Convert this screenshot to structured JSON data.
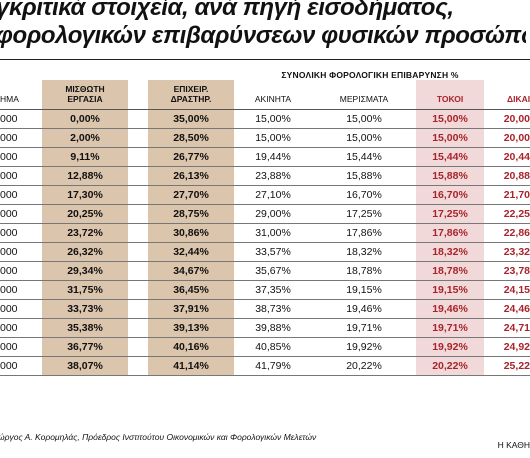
{
  "title": {
    "line1": "γκριτικά στοιχεία, ανά πηγή εισοδήματος,",
    "line2": "φορολογικών επιβαρύνσεων φυσικών προσώπων"
  },
  "table": {
    "group_header": "ΣΥΝΟΛΙΚΗ ΦΟΡΟΛΟΓΙΚΗ ΕΠΙΒΑΡΥΝΣΗ %",
    "columns": {
      "income": "ΗΜΑ",
      "salary_1": "ΜΙΣΘΩΤΗ",
      "salary_2": "ΕΡΓΑΣΙΑ",
      "business_1": "ΕΠΙΧΕΙΡ.",
      "business_2": "ΔΡΑΣΤΗΡ.",
      "property": "ΑΚΙΝΗΤΑ",
      "dividends": "ΜΕΡΙΣΜΑΤΑ",
      "interest": "ΤΟΚΟΙ",
      "royalties": "ΔΙΚΑΙΩΜ"
    },
    "rows": [
      [
        "000",
        "0,00%",
        "35,00%",
        "15,00%",
        "15,00%",
        "15,00%",
        "20,00"
      ],
      [
        "000",
        "2,00%",
        "28,50%",
        "15,00%",
        "15,00%",
        "15,00%",
        "20,00"
      ],
      [
        "000",
        "9,11%",
        "26,77%",
        "19,44%",
        "15,44%",
        "15,44%",
        "20,44"
      ],
      [
        "000",
        "12,88%",
        "26,13%",
        "23,88%",
        "15,88%",
        "15,88%",
        "20,88"
      ],
      [
        "000",
        "17,30%",
        "27,70%",
        "27,10%",
        "16,70%",
        "16,70%",
        "21,70"
      ],
      [
        "000",
        "20,25%",
        "28,75%",
        "29,00%",
        "17,25%",
        "17,25%",
        "22,25"
      ],
      [
        "000",
        "23,72%",
        "30,86%",
        "31,00%",
        "17,86%",
        "17,86%",
        "22,86"
      ],
      [
        "000",
        "26,32%",
        "32,44%",
        "33,57%",
        "18,32%",
        "18,32%",
        "23,32"
      ],
      [
        "000",
        "29,34%",
        "34,67%",
        "35,67%",
        "18,78%",
        "18,78%",
        "23,78"
      ],
      [
        "000",
        "31,75%",
        "36,45%",
        "37,35%",
        "19,15%",
        "19,15%",
        "24,15"
      ],
      [
        "000",
        "33,73%",
        "37,91%",
        "38,73%",
        "19,46%",
        "19,46%",
        "24,46"
      ],
      [
        "000",
        "35,38%",
        "39,13%",
        "39,88%",
        "19,71%",
        "19,71%",
        "24,71"
      ],
      [
        "000",
        "36,77%",
        "40,16%",
        "40,85%",
        "19,92%",
        "19,92%",
        "24,92"
      ],
      [
        "000",
        "38,07%",
        "41,14%",
        "41,79%",
        "20,22%",
        "20,22%",
        "25,22"
      ]
    ]
  },
  "source": "ώργος Α. Κορομηλάς, Πρόεδρος Ινστιτούτου Οικονομικών και Φορολογικών Μελετών",
  "credit": "Η ΚΑΘΗ",
  "colors": {
    "tan_shade": "#dcc5ad",
    "pink_shade": "#f1d9d9",
    "accent_red": "#a8242c"
  }
}
